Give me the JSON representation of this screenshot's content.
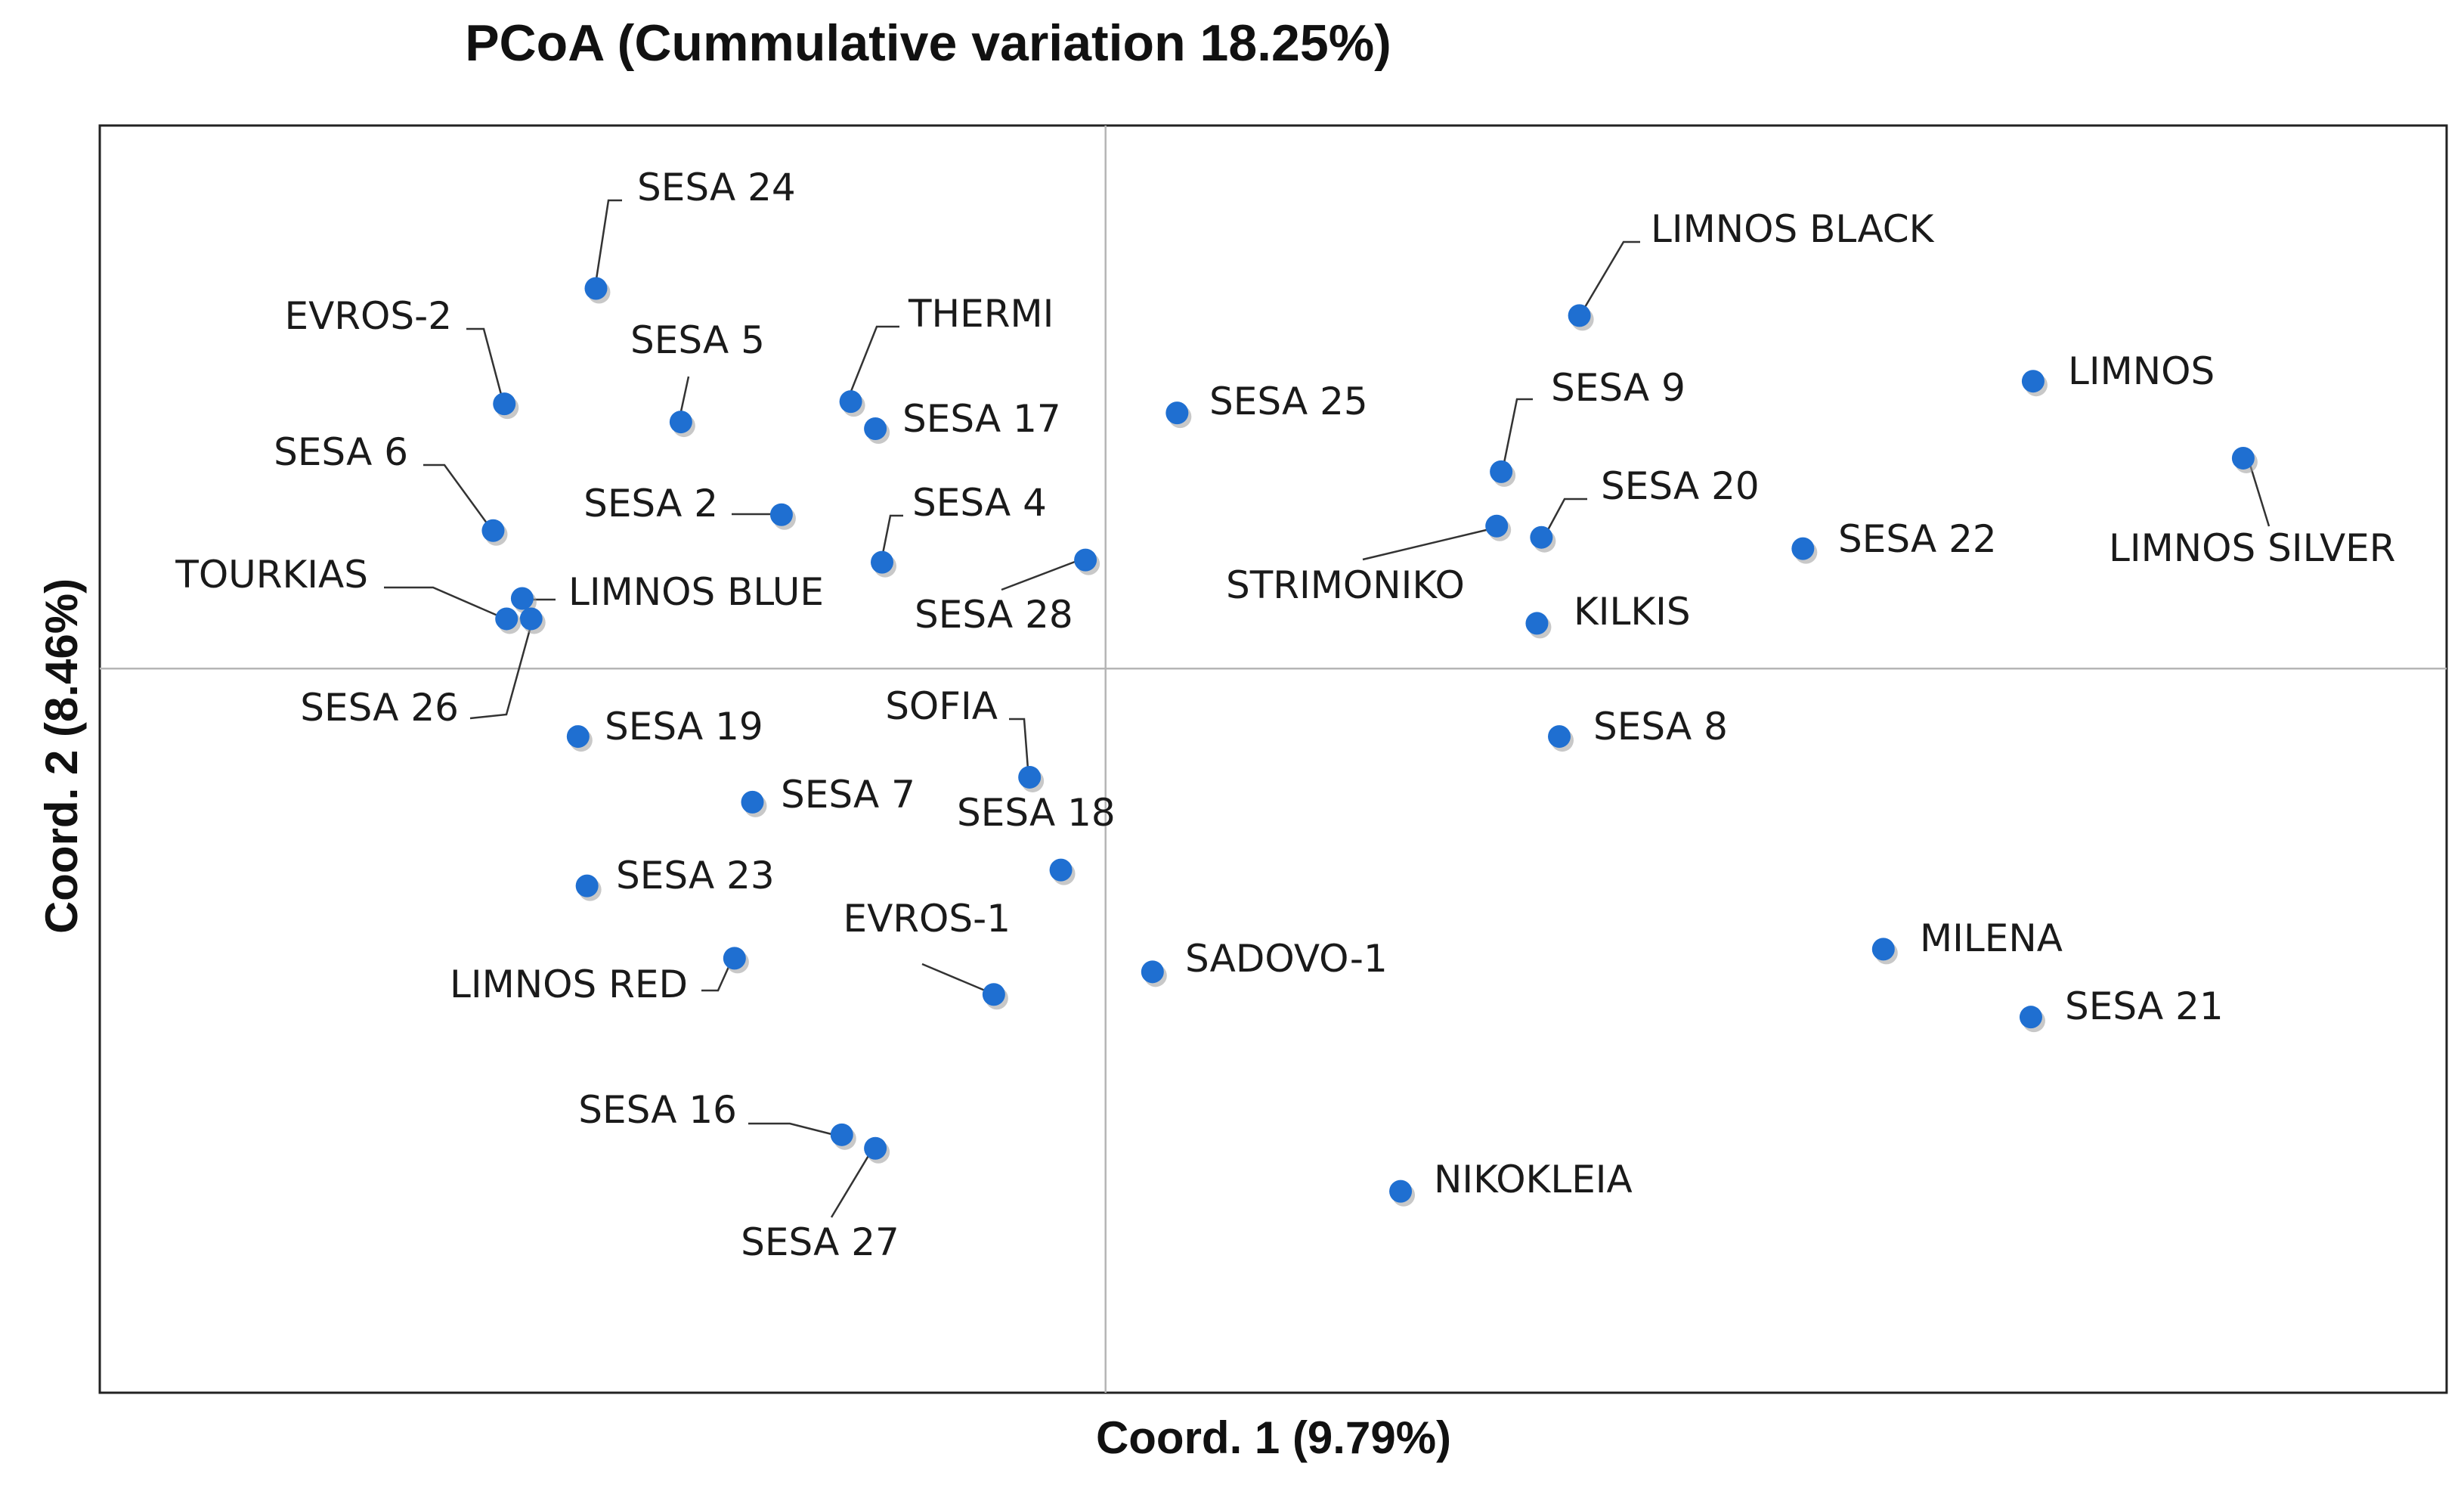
{
  "chart_data": {
    "type": "scatter",
    "title": "PCoA (Cummulative variation 18.25%)",
    "xlabel": "Coord. 1 (9.79%)",
    "ylabel": "Coord. 2 (8.46%)",
    "xlim": [
      -0.45,
      0.6
    ],
    "ylim": [
      -0.32,
      0.24
    ],
    "grid": false,
    "zero_lines": true,
    "point_color": "#1f6fd1",
    "series": [
      {
        "name": "samples",
        "points": [
          {
            "label": "SESA 24",
            "x": -0.228,
            "y": 0.168
          },
          {
            "label": "EVROS-2",
            "x": -0.269,
            "y": 0.117
          },
          {
            "label": "SESA 5",
            "x": -0.19,
            "y": 0.109
          },
          {
            "label": "THERMI",
            "x": -0.114,
            "y": 0.118
          },
          {
            "label": "SESA 17",
            "x": -0.103,
            "y": 0.106
          },
          {
            "label": "SESA 25",
            "x": 0.032,
            "y": 0.113
          },
          {
            "label": "LIMNOS BLACK",
            "x": 0.212,
            "y": 0.156
          },
          {
            "label": "LIMNOS",
            "x": 0.415,
            "y": 0.127
          },
          {
            "label": "LIMNOS SILVER",
            "x": 0.509,
            "y": 0.093
          },
          {
            "label": "SESA 9",
            "x": 0.177,
            "y": 0.087
          },
          {
            "label": "SESA 6",
            "x": -0.274,
            "y": 0.061
          },
          {
            "label": "SESA 2",
            "x": -0.145,
            "y": 0.068
          },
          {
            "label": "SESA 4",
            "x": -0.1,
            "y": 0.047
          },
          {
            "label": "SESA 28",
            "x": -0.009,
            "y": 0.048
          },
          {
            "label": "STRIMONIKO",
            "x": 0.175,
            "y": 0.063
          },
          {
            "label": "SESA 20",
            "x": 0.195,
            "y": 0.058
          },
          {
            "label": "SESA 22",
            "x": 0.312,
            "y": 0.053
          },
          {
            "label": "KILKIS",
            "x": 0.193,
            "y": 0.02
          },
          {
            "label": "TOURKIAS",
            "x": -0.261,
            "y": 0.031
          },
          {
            "label": "LIMNOS BLUE",
            "x": -0.257,
            "y": 0.022
          },
          {
            "label": "SESA 26",
            "x": -0.268,
            "y": 0.022
          },
          {
            "label": "SESA 19",
            "x": -0.236,
            "y": -0.03
          },
          {
            "label": "SOFIA",
            "x": -0.034,
            "y": -0.048
          },
          {
            "label": "SESA 8",
            "x": 0.203,
            "y": -0.03
          },
          {
            "label": "SESA 7",
            "x": -0.158,
            "y": -0.059
          },
          {
            "label": "SESA 18",
            "x": -0.02,
            "y": -0.089
          },
          {
            "label": "SESA 23",
            "x": -0.232,
            "y": -0.096
          },
          {
            "label": "EVROS-1",
            "x": -0.05,
            "y": -0.144
          },
          {
            "label": "LIMNOS RED",
            "x": -0.166,
            "y": -0.128
          },
          {
            "label": "SADOVO-1",
            "x": 0.021,
            "y": -0.134
          },
          {
            "label": "MILENA",
            "x": 0.348,
            "y": -0.124
          },
          {
            "label": "SESA 21",
            "x": 0.414,
            "y": -0.154
          },
          {
            "label": "SESA 16",
            "x": -0.118,
            "y": -0.206
          },
          {
            "label": "SESA 27",
            "x": -0.103,
            "y": -0.212
          },
          {
            "label": "NIKOKLEIA",
            "x": 0.132,
            "y": -0.231
          }
        ]
      }
    ]
  }
}
